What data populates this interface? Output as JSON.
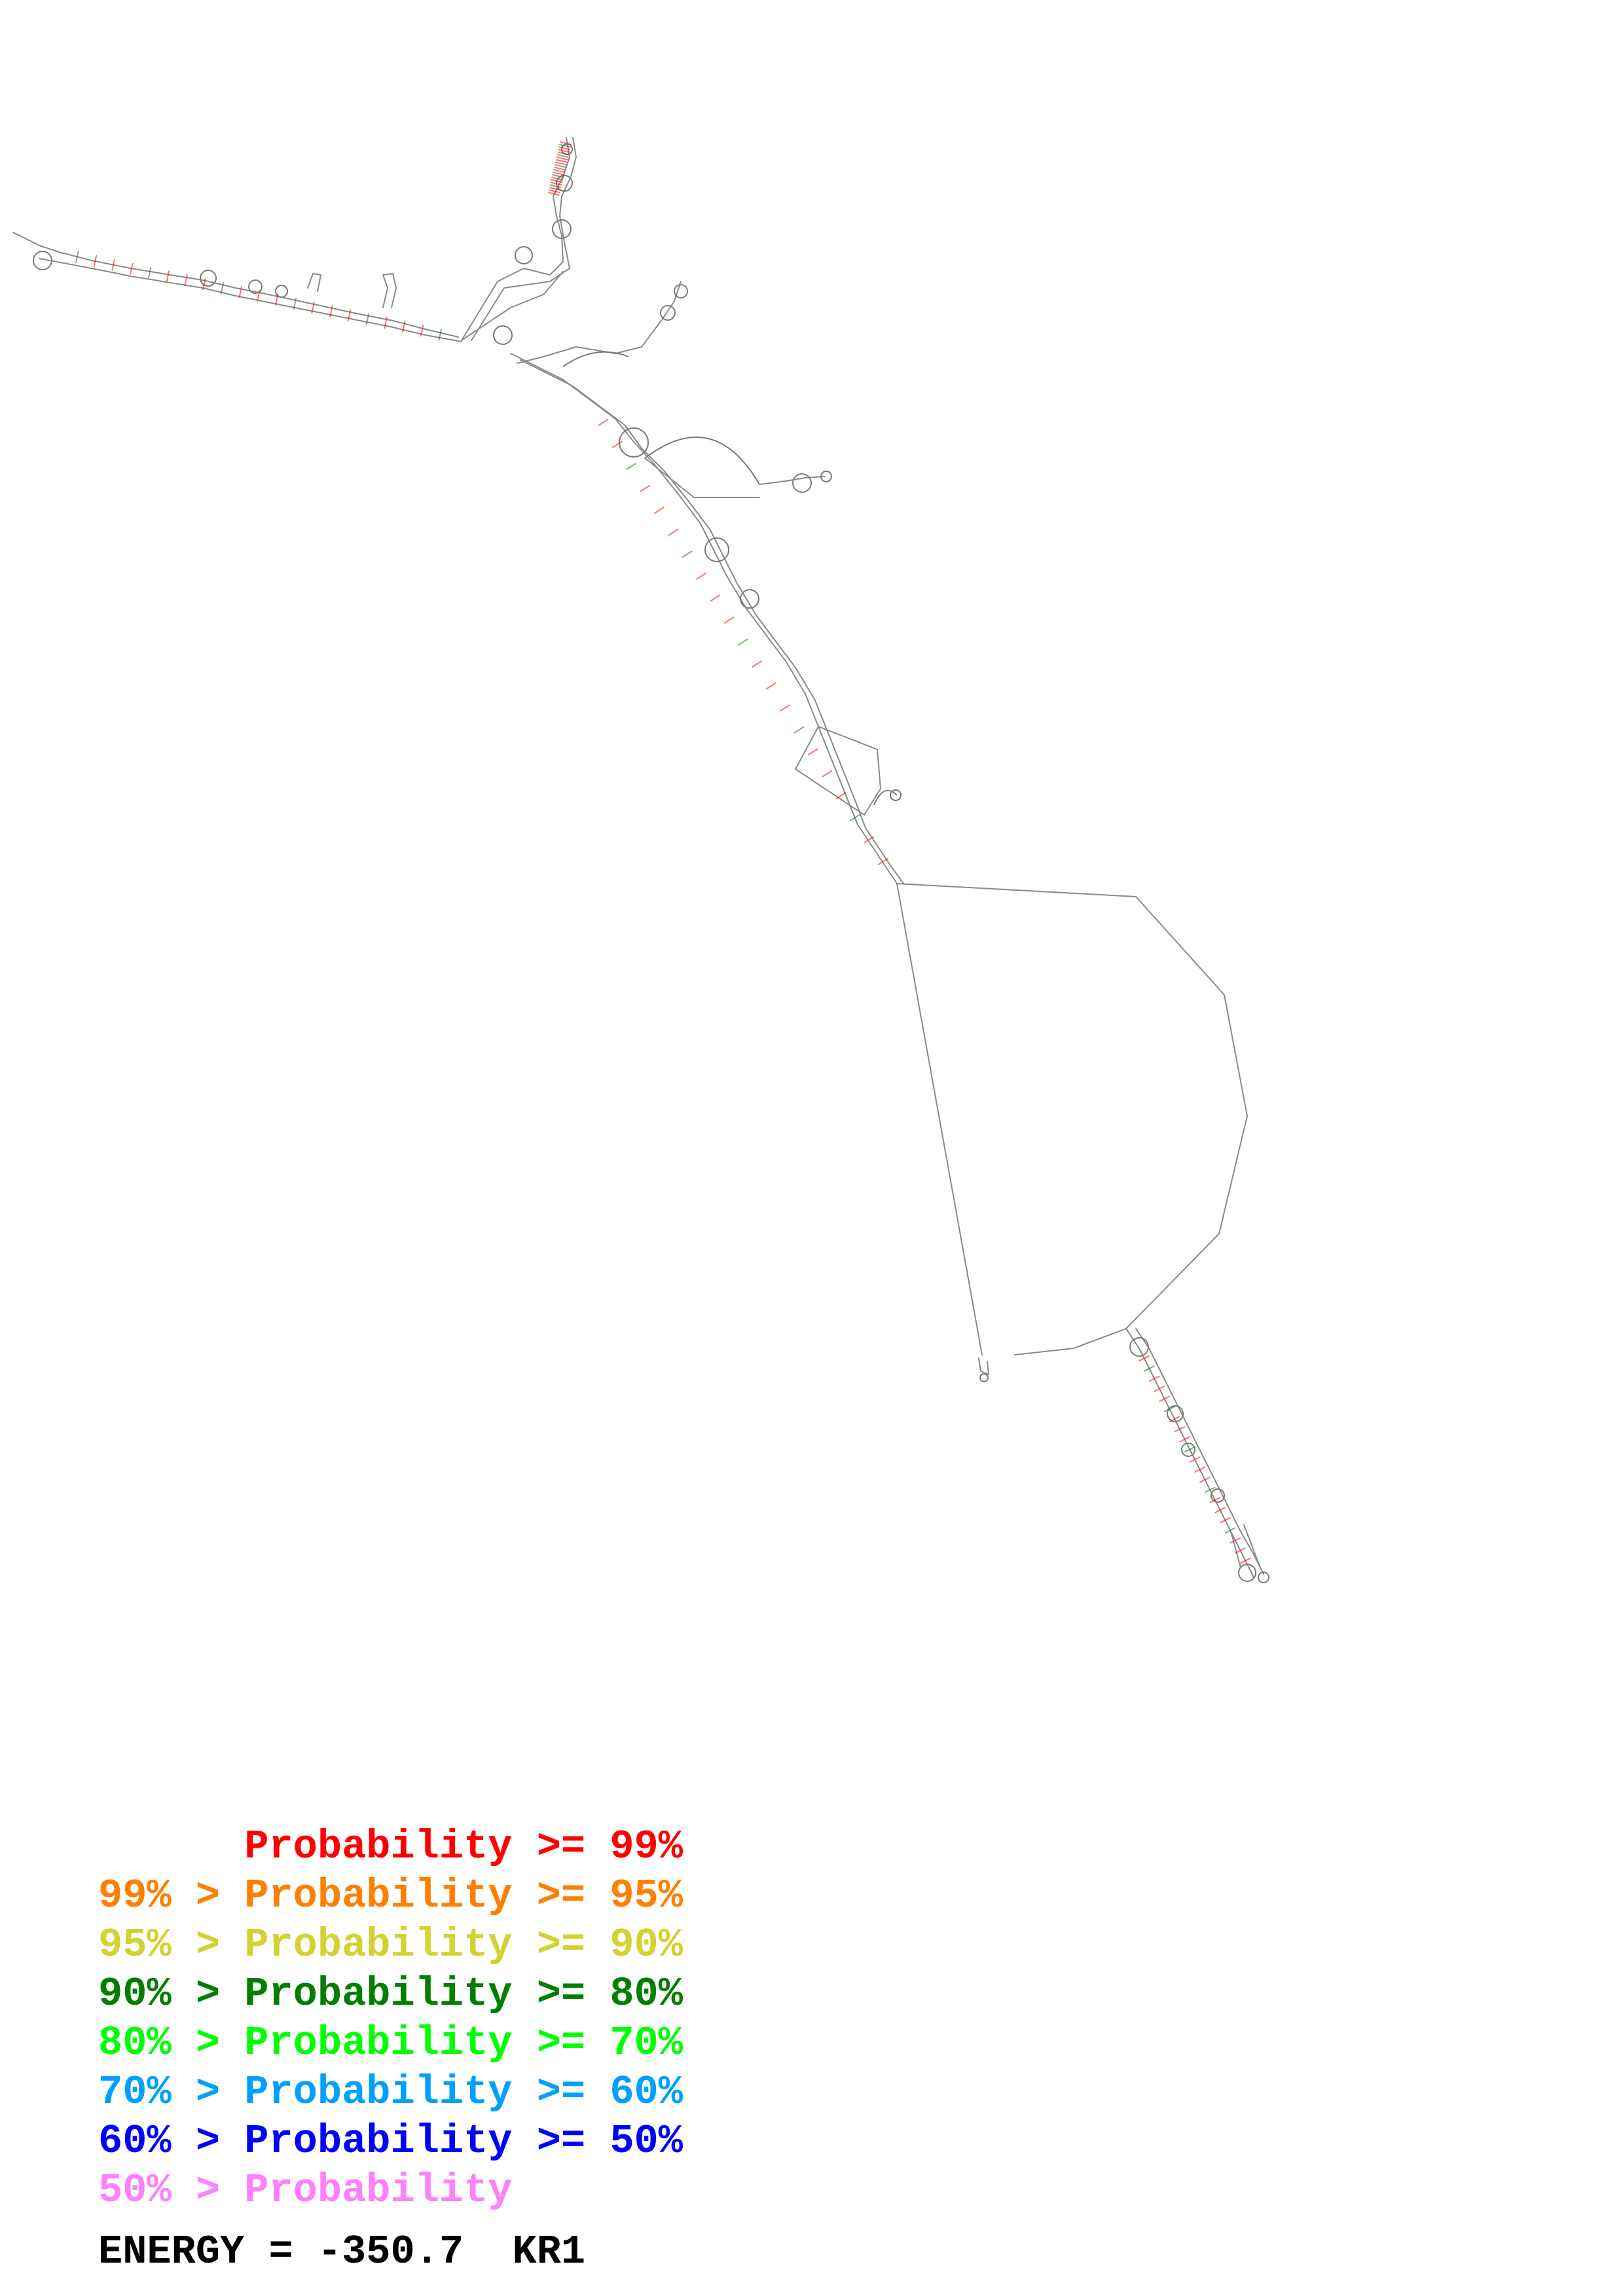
{
  "legend": {
    "rows": [
      {
        "prefix": "    ",
        "op": " ",
        "mid": "Probability",
        "suffix": ">= 99%",
        "color": "#ff0000"
      },
      {
        "prefix": "99%",
        "op": ">",
        "mid": "Probability",
        "suffix": ">= 95%",
        "color": "#ff7f00"
      },
      {
        "prefix": "95%",
        "op": ">",
        "mid": "Probability",
        "suffix": ">= 90%",
        "color": "#d2d232"
      },
      {
        "prefix": "90%",
        "op": ">",
        "mid": "Probability",
        "suffix": ">= 80%",
        "color": "#007f00"
      },
      {
        "prefix": "80%",
        "op": ">",
        "mid": "Probability",
        "suffix": ">= 70%",
        "color": "#00ff00"
      },
      {
        "prefix": "70%",
        "op": ">",
        "mid": "Probability",
        "suffix": ">= 60%",
        "color": "#00a0ff"
      },
      {
        "prefix": "60%",
        "op": ">",
        "mid": "Probability",
        "suffix": ">= 50%",
        "color": "#0000ff"
      },
      {
        "prefix": "50%",
        "op": ">",
        "mid": "Probability",
        "suffix": "",
        "color": "#ff7fff"
      }
    ]
  },
  "energy": {
    "label": "ENERGY = -350.7",
    "name": "KR1"
  },
  "colors": {
    "backbone": "#8a8a8a",
    "background": "#ffffff"
  }
}
